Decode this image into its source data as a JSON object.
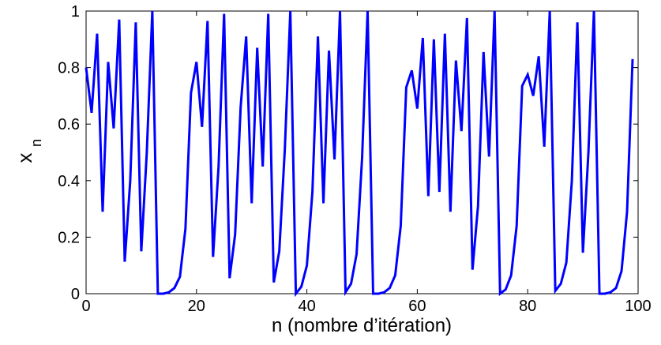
{
  "chart_data": {
    "type": "line",
    "xlabel": "n (nombre d’itération)",
    "ylabel": {
      "text": "x",
      "subscript": "n"
    },
    "x": [
      0,
      1,
      2,
      3,
      4,
      5,
      6,
      7,
      8,
      9,
      10,
      11,
      12,
      13,
      14,
      15,
      16,
      17,
      18,
      19,
      20,
      21,
      22,
      23,
      24,
      25,
      26,
      27,
      28,
      29,
      30,
      31,
      32,
      33,
      34,
      35,
      36,
      37,
      38,
      39,
      40,
      41,
      42,
      43,
      44,
      45,
      46,
      47,
      48,
      49,
      50,
      51,
      52,
      53,
      54,
      55,
      56,
      57,
      58,
      59,
      60,
      61,
      62,
      63,
      64,
      65,
      66,
      67,
      68,
      69,
      70,
      71,
      72,
      73,
      74,
      75,
      76,
      77,
      78,
      79,
      80,
      81,
      82,
      83,
      84,
      85,
      86,
      87,
      88,
      89,
      90,
      91,
      92,
      93,
      94,
      95,
      96,
      97,
      98,
      99
    ],
    "series": [
      {
        "color": "#0000ff",
        "values": [
          0.8,
          0.64,
          0.92,
          0.29,
          0.82,
          0.585,
          0.97,
          0.113,
          0.4,
          0.96,
          0.15,
          0.5,
          1.0,
          0.0,
          0.0,
          0.005,
          0.02,
          0.06,
          0.23,
          0.71,
          0.82,
          0.59,
          0.965,
          0.13,
          0.45,
          0.99,
          0.055,
          0.21,
          0.66,
          0.91,
          0.32,
          0.87,
          0.45,
          0.99,
          0.04,
          0.15,
          0.51,
          1.0,
          0.0,
          0.025,
          0.1,
          0.36,
          0.91,
          0.32,
          0.86,
          0.475,
          1.0,
          0.005,
          0.035,
          0.14,
          0.48,
          1.0,
          0.0,
          0.0,
          0.005,
          0.02,
          0.065,
          0.24,
          0.73,
          0.79,
          0.655,
          0.905,
          0.345,
          0.9,
          0.36,
          0.92,
          0.29,
          0.825,
          0.575,
          0.975,
          0.085,
          0.31,
          0.855,
          0.485,
          1.0,
          0.0,
          0.015,
          0.065,
          0.24,
          0.735,
          0.775,
          0.7,
          0.84,
          0.52,
          1.0,
          0.01,
          0.035,
          0.11,
          0.4,
          0.96,
          0.145,
          0.5,
          1.0,
          0.0,
          0.0,
          0.005,
          0.02,
          0.08,
          0.29,
          0.83
        ]
      }
    ],
    "xlim": [
      0,
      100
    ],
    "ylim": [
      0,
      1
    ],
    "xticks": [
      0,
      20,
      40,
      60,
      80,
      100
    ],
    "yticks": [
      0,
      0.2,
      0.4,
      0.6,
      0.8,
      1
    ]
  }
}
